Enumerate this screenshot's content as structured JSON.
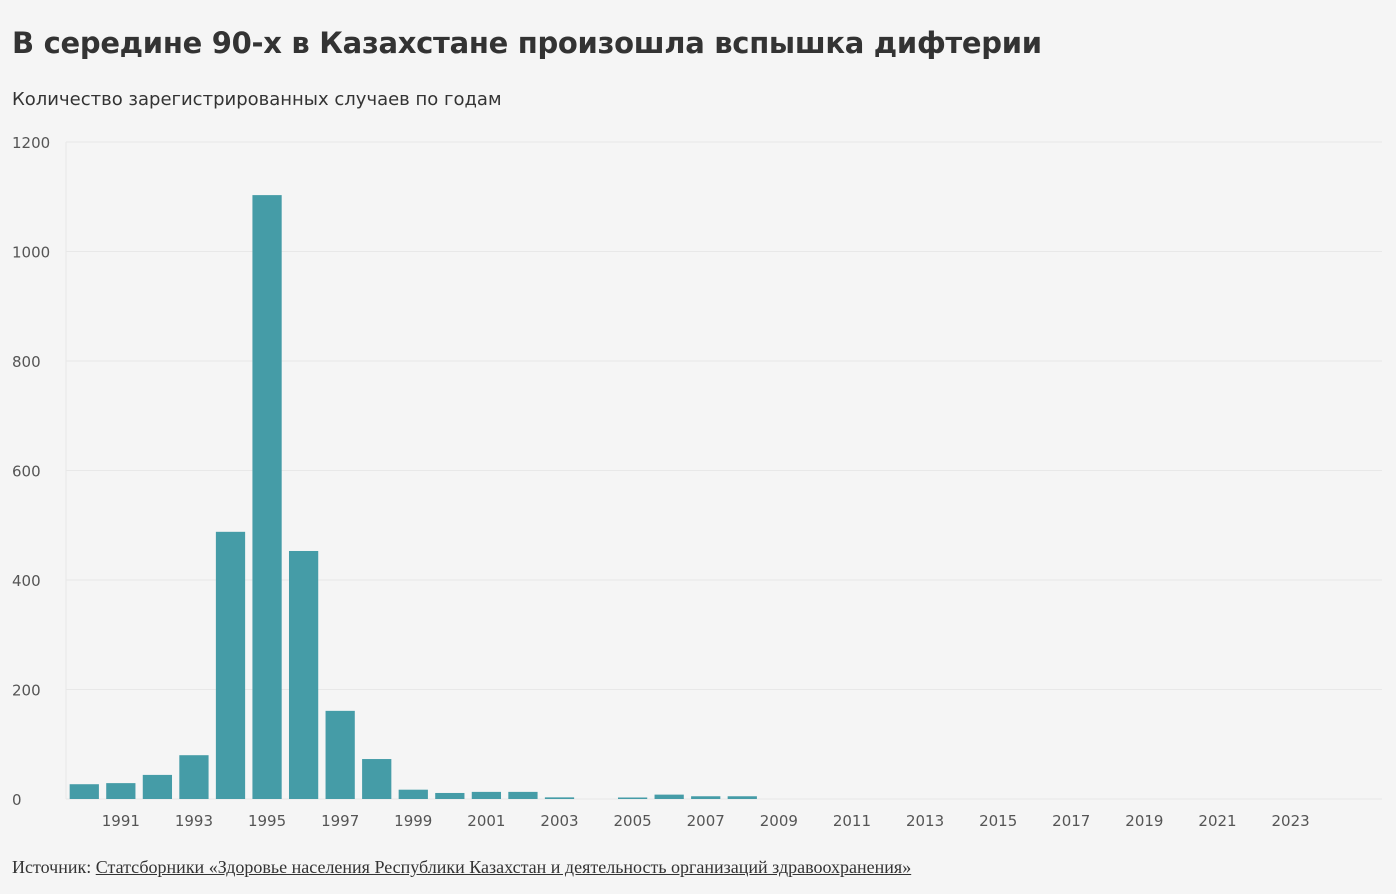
{
  "title": "В середине 90-х в Казахстане произошла вспышка дифтерии",
  "subtitle": "Количество зарегистрированных случаев по годам",
  "source": {
    "label": "Источник:",
    "link_text": "Статсборники «Здоровье населения Республики Казахстан и деятельность организаций здравоохранения»"
  },
  "colors": {
    "bar": "#459ca7",
    "background": "#f5f5f5",
    "grid": "#e8e8e8"
  },
  "chart_data": {
    "type": "bar",
    "title": "В середине 90-х в Казахстане произошла вспышка дифтерии",
    "subtitle": "Количество зарегистрированных случаев по годам",
    "xlabel": "",
    "ylabel": "",
    "ylim": [
      0,
      1200
    ],
    "yticks": [
      0,
      200,
      400,
      600,
      800,
      1000,
      1200
    ],
    "grid": true,
    "categories": [
      1990,
      1991,
      1992,
      1993,
      1994,
      1995,
      1996,
      1997,
      1998,
      1999,
      2000,
      2001,
      2002,
      2003,
      2004,
      2005,
      2006,
      2007,
      2008,
      2009,
      2010,
      2011,
      2012,
      2013,
      2014,
      2015,
      2016,
      2017,
      2018,
      2019,
      2020,
      2021,
      2022,
      2023,
      2024,
      2025
    ],
    "xtick_labels": [
      "1991",
      "1993",
      "1995",
      "1997",
      "1999",
      "2001",
      "2003",
      "2005",
      "2007",
      "2009",
      "2011",
      "2013",
      "2015",
      "2017",
      "2019",
      "2021",
      "2023"
    ],
    "values": [
      27,
      29,
      44,
      80,
      488,
      1103,
      453,
      161,
      73,
      17,
      11,
      13,
      13,
      3,
      0,
      1,
      8,
      5,
      5,
      0,
      0,
      0,
      0,
      0,
      0,
      0,
      0,
      0,
      0,
      0,
      0,
      0,
      0,
      0,
      0,
      0
    ]
  }
}
